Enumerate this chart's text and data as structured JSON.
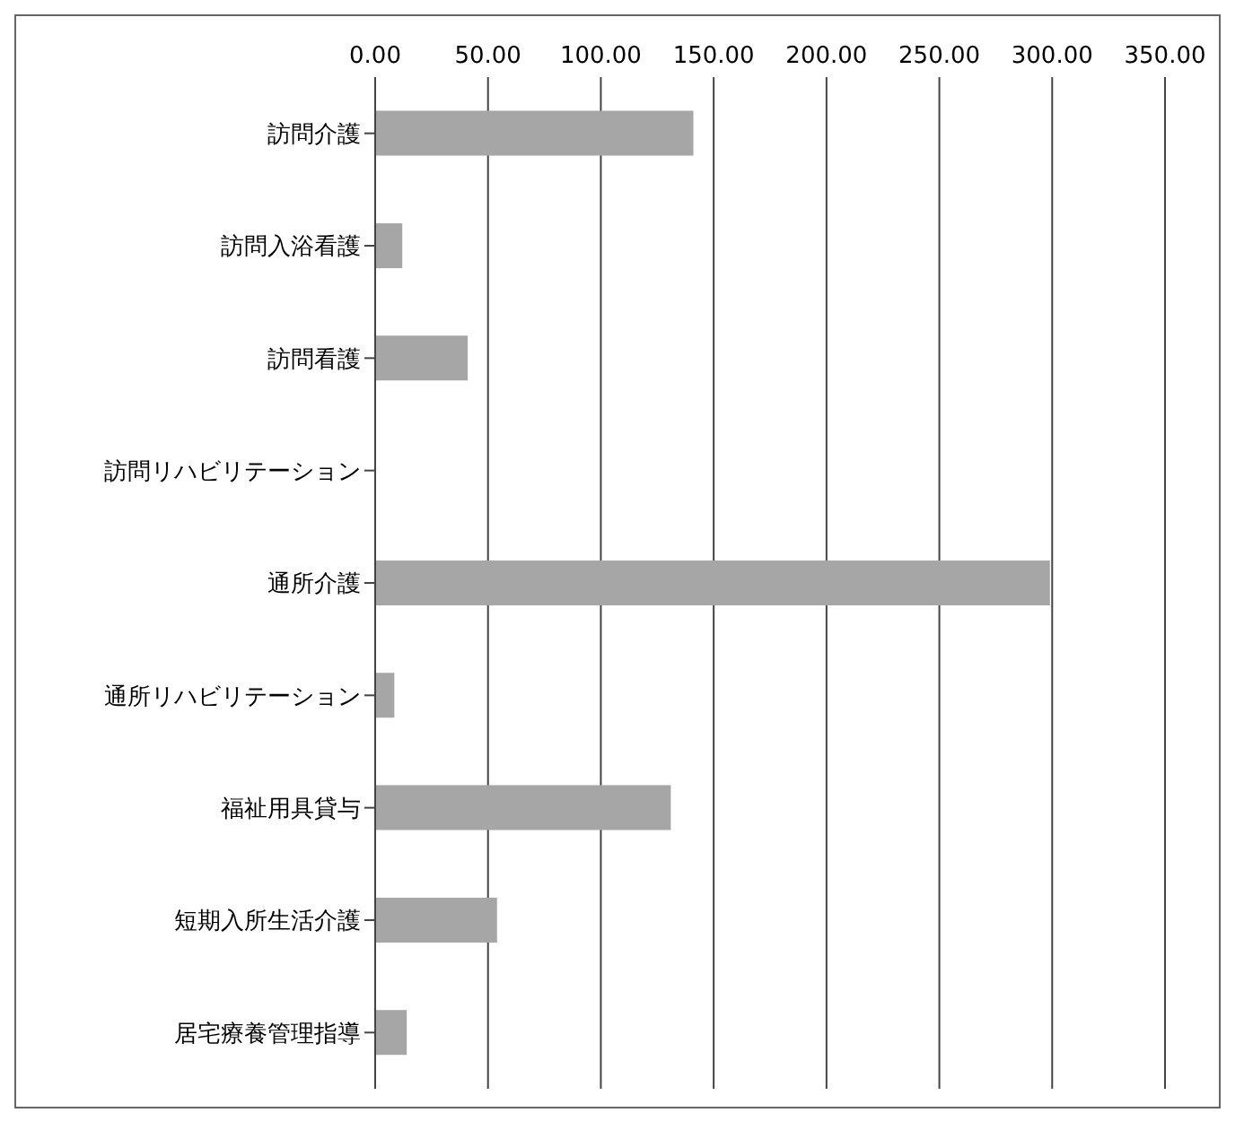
{
  "chart_data": {
    "type": "bar",
    "orientation": "horizontal",
    "categories": [
      "訪問介護",
      "訪問入浴看護",
      "訪問看護",
      "訪問リハビリテーション",
      "通所介護",
      "通所リハビリテーション",
      "福祉用具貸与",
      "短期入所生活介護",
      "居宅療養管理指導"
    ],
    "values": [
      141,
      12,
      41,
      0,
      299,
      8.5,
      131,
      54,
      14
    ],
    "color": "#a6a6a6",
    "xlim": [
      0,
      350
    ],
    "xticks": [
      {
        "value": 0,
        "label": "0.00"
      },
      {
        "value": 50,
        "label": "50.00"
      },
      {
        "value": 100,
        "label": "100.00"
      },
      {
        "value": 150,
        "label": "150.00"
      },
      {
        "value": 200,
        "label": "200.00"
      },
      {
        "value": 250,
        "label": "250.00"
      },
      {
        "value": 300,
        "label": "300.00"
      },
      {
        "value": 350,
        "label": "350.00"
      }
    ],
    "grid": "x"
  }
}
